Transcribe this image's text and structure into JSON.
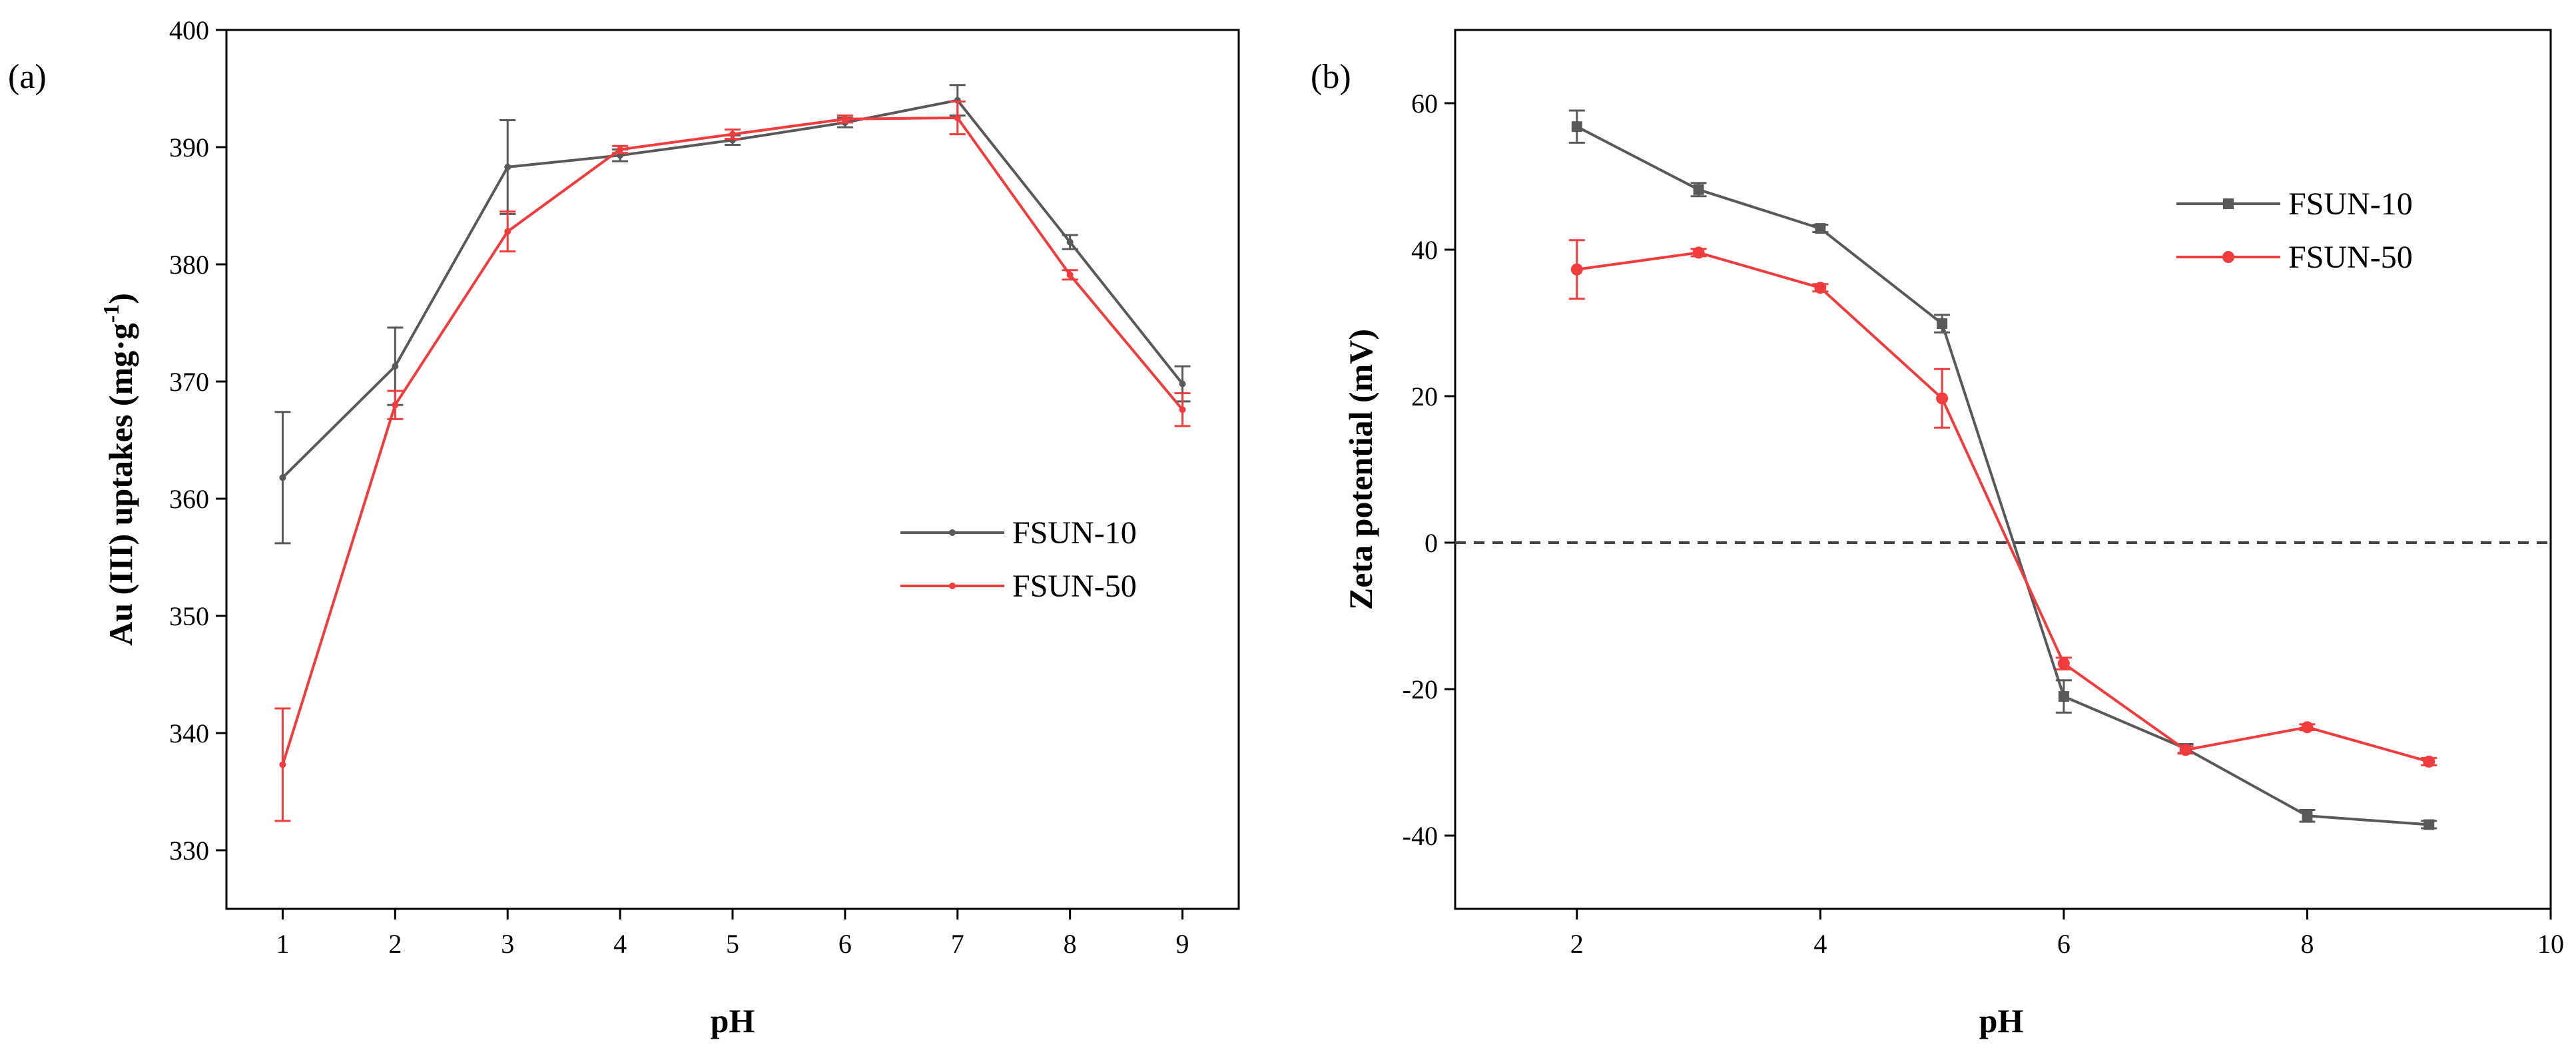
{
  "chart_data": [
    {
      "type": "line",
      "panel_label": "(a)",
      "xlabel": "pH",
      "ylabel_main": "Au (III) uptakes (mg·g",
      "ylabel_sup": "-1",
      "ylabel_end": ")",
      "xlim": [
        0.5,
        9.5
      ],
      "ylim": [
        325,
        400
      ],
      "xticks": [
        "1",
        "2",
        "3",
        "4",
        "5",
        "6",
        "7",
        "8",
        "9"
      ],
      "yticks": [
        "330",
        "340",
        "350",
        "360",
        "370",
        "380",
        "390",
        "400"
      ],
      "legend": "center-right",
      "series": [
        {
          "name": "FSUN-10",
          "color": "#595959",
          "marker": "dot",
          "x": [
            1,
            2,
            3,
            4,
            5,
            6,
            7,
            8,
            9
          ],
          "y": [
            361.8,
            371.3,
            388.3,
            389.3,
            390.6,
            392.1,
            394.0,
            381.9,
            369.8
          ],
          "err": [
            5.6,
            3.3,
            4.0,
            0.5,
            0.4,
            0.4,
            1.3,
            0.6,
            1.5
          ]
        },
        {
          "name": "FSUN-50",
          "color": "#f03c3c",
          "marker": "dot",
          "x": [
            1,
            2,
            3,
            4,
            5,
            6,
            7,
            8,
            9
          ],
          "y": [
            337.3,
            368.0,
            382.8,
            389.8,
            391.1,
            392.4,
            392.5,
            379.1,
            367.6
          ],
          "err": [
            4.8,
            1.2,
            1.7,
            0.3,
            0.4,
            0.3,
            1.4,
            0.4,
            1.4
          ]
        }
      ]
    },
    {
      "type": "line",
      "panel_label": "(b)",
      "xlabel": "pH",
      "ylabel_main": "Zeta potential (mV)",
      "xlim": [
        1,
        10
      ],
      "ylim": [
        -50,
        70
      ],
      "xticks": [
        "2",
        "4",
        "6",
        "8",
        "10"
      ],
      "yticks": [
        "-40",
        "-20",
        "0",
        "20",
        "40",
        "60"
      ],
      "reference_line": 0,
      "legend": "top-right",
      "series": [
        {
          "name": "FSUN-10",
          "color": "#595959",
          "marker": "square",
          "x": [
            2,
            3,
            4,
            5,
            6,
            7,
            8,
            9
          ],
          "y": [
            56.8,
            48.2,
            42.9,
            29.9,
            -21.0,
            -28.1,
            -37.3,
            -38.5
          ],
          "err": [
            2.2,
            0.9,
            0.5,
            1.2,
            2.2,
            0.6,
            0.8,
            0.5
          ]
        },
        {
          "name": "FSUN-50",
          "color": "#f03c3c",
          "marker": "circle",
          "x": [
            2,
            3,
            4,
            5,
            6,
            7,
            8,
            9
          ],
          "y": [
            37.3,
            39.6,
            34.8,
            19.7,
            -16.5,
            -28.3,
            -25.2,
            -29.9
          ],
          "err": [
            4.0,
            0.5,
            0.5,
            4.0,
            0.8,
            0.5,
            0.4,
            0.5
          ]
        }
      ]
    }
  ]
}
